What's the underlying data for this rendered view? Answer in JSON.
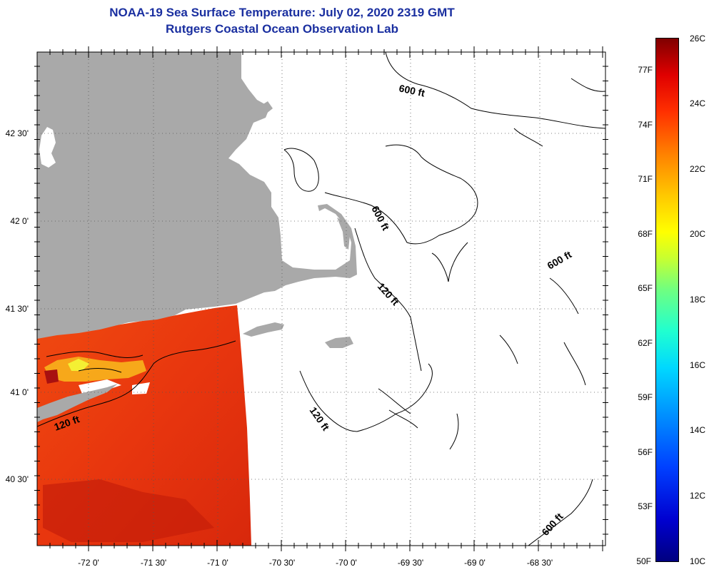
{
  "title": {
    "line1": "NOAA-19 Sea Surface Temperature:  July 02, 2020 2319 GMT",
    "line2": "Rutgers Coastal Ocean Observation Lab"
  },
  "axes": {
    "lat_labels": [
      "42 30'",
      "42 0'",
      "41 30'",
      "41 0'",
      "40 30'"
    ],
    "lon_labels": [
      "-72 0'",
      "-71 30'",
      "-71 0'",
      "-70 30'",
      "-70 0'",
      "-69 30'",
      "-69 0'",
      "-68 30'"
    ]
  },
  "contours": {
    "labels": [
      "600 ft",
      "600 ft",
      "600 ft",
      "600 ft",
      "120 ft",
      "120 ft",
      "120 ft"
    ]
  },
  "colorbar": {
    "fahrenheit": [
      "77F",
      "74F",
      "71F",
      "68F",
      "65F",
      "62F",
      "59F",
      "56F",
      "53F",
      "50F"
    ],
    "celsius": [
      "26C",
      "24C",
      "22C",
      "20C",
      "18C",
      "16C",
      "14C",
      "12C",
      "10C"
    ]
  },
  "colors": {
    "land": "#a9a9a9",
    "title": "#1a2fa0",
    "sst_warm": "#e83a10"
  }
}
